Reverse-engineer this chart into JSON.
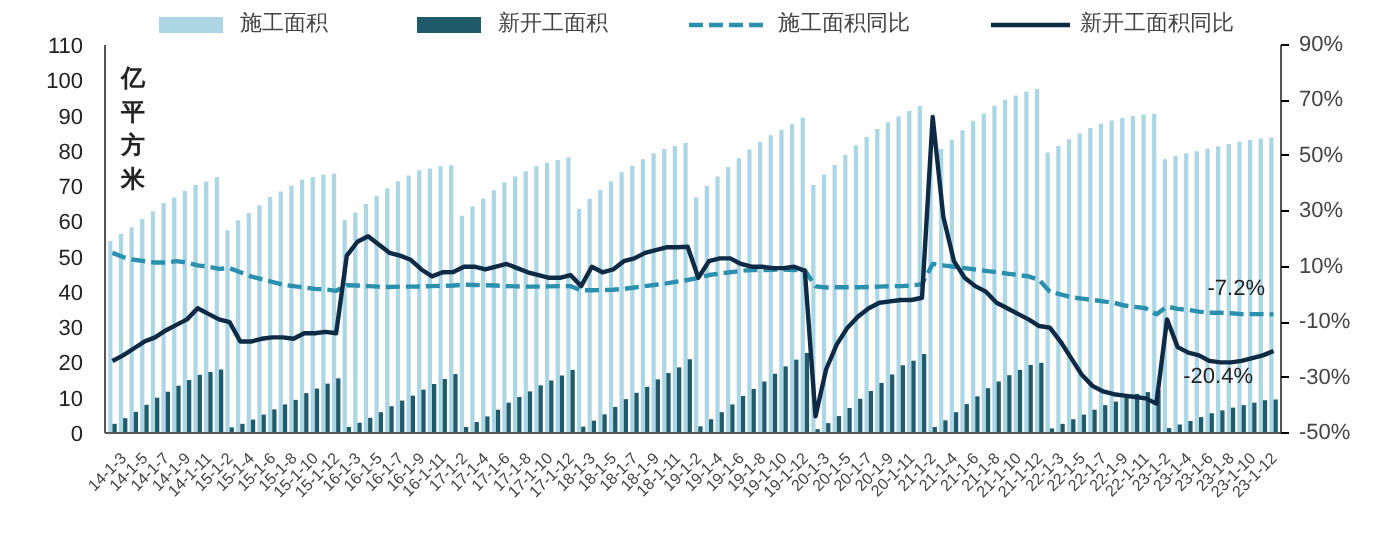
{
  "chart_data": {
    "type": "bar",
    "ylabel": "亿平方米",
    "categories": [
      null,
      "14-1-3",
      null,
      "14-1-5",
      null,
      "14-1-7",
      null,
      "14-1-9",
      null,
      "14-1-11",
      null,
      "15-1-2",
      null,
      "15-1-4",
      null,
      "15-1-6",
      null,
      "15-1-8",
      null,
      "15-1-10",
      null,
      "15-1-12",
      null,
      "16-1-3",
      null,
      "16-1-5",
      null,
      "16-1-7",
      null,
      "16-1-9",
      null,
      "16-1-11",
      null,
      "17-1-2",
      null,
      "17-1-4",
      null,
      "17-1-6",
      null,
      "17-1-8",
      null,
      "17-1-10",
      null,
      "17-1-12",
      null,
      "18-1-3",
      null,
      "18-1-5",
      null,
      "18-1-7",
      null,
      "18-1-9",
      null,
      "18-1-11",
      null,
      "19-1-2",
      null,
      "19-1-4",
      null,
      "19-1-6",
      null,
      "19-1-8",
      null,
      "19-1-10",
      null,
      "19-1-12",
      null,
      "20-1-3",
      null,
      "20-1-5",
      null,
      "20-1-7",
      null,
      "20-1-9",
      null,
      "20-1-11",
      null,
      "21-1-2",
      null,
      "21-1-4",
      null,
      "21-1-6",
      null,
      "21-1-8",
      null,
      "21-1-10",
      null,
      "21-1-12",
      null,
      "22-1-3",
      null,
      "22-1-5",
      null,
      "22-1-7",
      null,
      "22-1-9",
      null,
      "22-1-11",
      null,
      "23-1-2",
      null,
      "23-1-4",
      null,
      "23-1-6",
      null,
      "23-1-8",
      null,
      "23-1-10",
      null,
      "23-1-12"
    ],
    "series": [
      {
        "name": "施工面积",
        "color": "#add6e5",
        "values": [
          54.4,
          56.4,
          58.3,
          60.7,
          62.9,
          65.2,
          66.8,
          68.6,
          70.3,
          71.3,
          72.6,
          57.5,
          60.3,
          62.4,
          64.6,
          66.9,
          68.5,
          70.1,
          71.8,
          72.5,
          73.2,
          73.6,
          60.4,
          62.5,
          64.9,
          67.2,
          69.4,
          71.4,
          73.0,
          74.5,
          75.0,
          75.6,
          75.9,
          61.6,
          64.2,
          66.4,
          68.8,
          71.0,
          72.7,
          74.2,
          75.6,
          76.6,
          77.4,
          78.2,
          63.6,
          66.4,
          68.9,
          71.4,
          73.9,
          75.8,
          77.6,
          79.3,
          80.5,
          81.4,
          82.2,
          66.8,
          70.0,
          72.7,
          75.4,
          77.9,
          80.4,
          82.5,
          84.4,
          86.0,
          87.5,
          89.4,
          70.3,
          73.3,
          76.0,
          78.9,
          81.6,
          84.0,
          86.2,
          88.1,
          89.8,
          91.3,
          92.7,
          78.4,
          80.6,
          83.2,
          85.8,
          88.5,
          90.6,
          92.8,
          94.5,
          95.7,
          96.8,
          97.5,
          79.5,
          81.4,
          83.3,
          84.9,
          86.5,
          87.7,
          88.6,
          89.3,
          89.9,
          90.3,
          90.5,
          77.6,
          78.6,
          79.3,
          79.9,
          80.6,
          81.3,
          81.9,
          82.6,
          83.1,
          83.5,
          83.8
        ]
      },
      {
        "name": "新开工面积",
        "color": "#1f5b6b",
        "values": [
          2.6,
          4.2,
          6.0,
          8.0,
          10.0,
          11.7,
          13.4,
          15.0,
          16.5,
          17.3,
          18.0,
          1.6,
          2.6,
          3.8,
          5.2,
          6.7,
          8.1,
          9.4,
          11.3,
          12.6,
          14.0,
          15.5,
          1.7,
          2.9,
          4.3,
          5.9,
          7.6,
          9.2,
          10.6,
          12.3,
          13.9,
          15.3,
          16.7,
          1.7,
          3.1,
          4.7,
          6.6,
          8.6,
          10.2,
          11.8,
          13.5,
          14.9,
          16.3,
          17.9,
          1.8,
          3.5,
          5.3,
          7.4,
          9.6,
          11.4,
          13.1,
          15.2,
          17.0,
          18.6,
          20.9,
          1.9,
          3.9,
          5.9,
          8.1,
          10.5,
          12.5,
          14.6,
          16.8,
          18.9,
          20.8,
          22.7,
          1.1,
          2.8,
          4.8,
          7.1,
          9.7,
          11.9,
          14.2,
          16.6,
          19.2,
          20.5,
          22.4,
          1.7,
          3.6,
          5.9,
          8.2,
          10.4,
          12.7,
          14.6,
          16.4,
          17.9,
          19.3,
          19.9,
          1.3,
          2.6,
          3.9,
          5.2,
          6.6,
          7.9,
          8.9,
          10.1,
          11.1,
          11.6,
          12.1,
          1.4,
          2.4,
          3.4,
          4.5,
          5.6,
          6.4,
          7.2,
          7.9,
          8.6,
          9.3,
          9.5
        ]
      },
      {
        "name": "施工面积同比",
        "type": "line",
        "axis": "y2",
        "line_style": "dashed",
        "color": "#2b8fae",
        "values": [
          15.0,
          13.5,
          12.5,
          12.0,
          11.5,
          11.5,
          12.0,
          11.5,
          10.5,
          10.0,
          9.2,
          9.5,
          8.0,
          6.5,
          5.5,
          4.5,
          3.5,
          3.0,
          2.5,
          2.0,
          1.8,
          1.3,
          3.3,
          3.2,
          3.0,
          2.8,
          2.7,
          2.8,
          2.8,
          2.9,
          3.0,
          3.1,
          3.2,
          3.5,
          3.4,
          3.3,
          3.2,
          3.0,
          2.9,
          2.8,
          2.8,
          2.9,
          3.0,
          3.0,
          1.5,
          1.5,
          1.6,
          1.7,
          2.0,
          2.5,
          3.0,
          3.5,
          4.0,
          4.6,
          5.2,
          6.0,
          7.0,
          7.5,
          8.0,
          8.5,
          8.8,
          8.8,
          8.9,
          9.0,
          8.8,
          8.7,
          2.9,
          2.5,
          2.6,
          2.6,
          2.6,
          2.7,
          2.8,
          3.0,
          3.0,
          3.2,
          3.7,
          11.0,
          10.5,
          10.0,
          9.5,
          9.0,
          8.5,
          8.0,
          7.5,
          7.0,
          6.5,
          5.2,
          1.0,
          0.0,
          -1.0,
          -1.5,
          -2.0,
          -2.5,
          -3.0,
          -4.0,
          -4.5,
          -5.0,
          -7.2,
          -4.4,
          -5.2,
          -5.6,
          -6.2,
          -6.6,
          -6.6,
          -6.8,
          -7.1,
          -7.1,
          -7.1,
          -7.2
        ]
      },
      {
        "name": "新开工面积同比",
        "type": "line",
        "axis": "y2",
        "line_style": "solid",
        "color": "#0f2a44",
        "values": [
          -24,
          -22,
          -19.5,
          -17,
          -15.5,
          -13,
          -11,
          -9,
          -5,
          -7,
          -9,
          -10,
          -17,
          -17,
          -16,
          -15.5,
          -15.5,
          -16,
          -14,
          -14,
          -13.5,
          -14,
          14,
          19,
          21,
          18,
          15,
          14,
          12.5,
          9,
          6.5,
          8,
          8.1,
          10,
          10,
          9,
          10,
          11,
          9.5,
          8,
          7,
          6,
          6,
          7,
          3,
          10,
          8,
          9,
          12,
          13,
          15,
          16,
          17,
          17,
          17.2,
          6,
          12,
          13,
          13,
          11,
          10,
          10,
          9.5,
          9.5,
          10,
          8.5,
          -44,
          -27,
          -18,
          -12,
          -8,
          -5,
          -3,
          -2.5,
          -2,
          -2,
          -1.2,
          64,
          28,
          12,
          6,
          3,
          1,
          -3,
          -5,
          -7,
          -9,
          -11.4,
          -12,
          -17,
          -23,
          -29,
          -33,
          -35,
          -36,
          -36.5,
          -37,
          -37.5,
          -39.4,
          -9,
          -19,
          -21,
          -22,
          -24,
          -24.5,
          -24.5,
          -24,
          -23,
          -22,
          -20.4
        ]
      }
    ],
    "ylim": [
      0,
      110
    ],
    "yticks": [
      0,
      10,
      20,
      30,
      40,
      50,
      60,
      70,
      80,
      90,
      100,
      110
    ],
    "y2lim": [
      -50,
      90
    ],
    "y2ticks": [
      {
        "value": -50,
        "label": "-50%"
      },
      {
        "value": -30,
        "label": "-30%"
      },
      {
        "value": -10,
        "label": "-10%"
      },
      {
        "value": 10,
        "label": "10%"
      },
      {
        "value": 30,
        "label": "30%"
      },
      {
        "value": 50,
        "label": "50%"
      },
      {
        "value": 70,
        "label": "70%"
      },
      {
        "value": 90,
        "label": "90%"
      }
    ],
    "annotations": [
      "-7.2%",
      "-20.4%"
    ],
    "legend": "top",
    "grid": false
  }
}
